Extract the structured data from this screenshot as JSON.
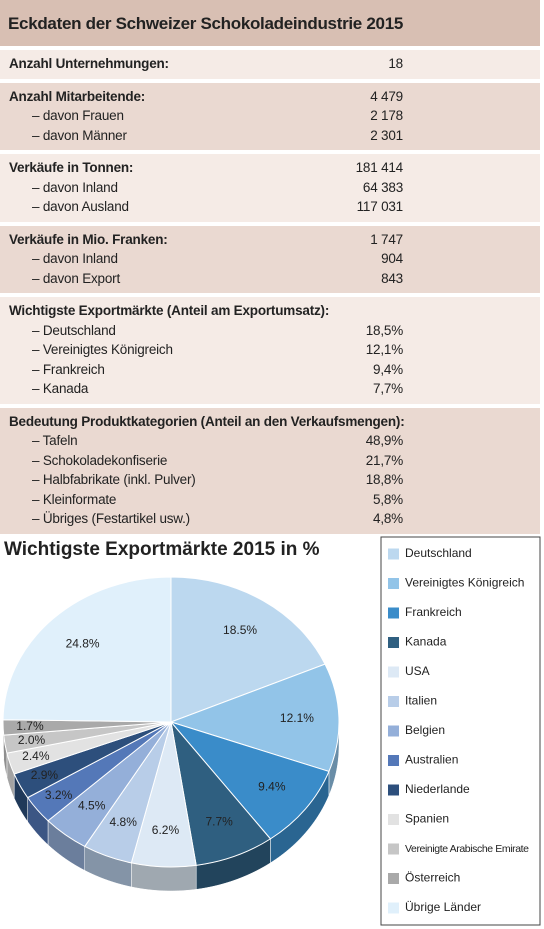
{
  "table": {
    "title": "Eckdaten der Schweizer Schokoladeindustrie 2015",
    "sections": [
      {
        "heading": "Anzahl Unternehmungen:",
        "value": "18",
        "rows": []
      },
      {
        "heading": "Anzahl Mitarbeitende:",
        "value": "4 479",
        "rows": [
          [
            "– davon Frauen",
            "2 178"
          ],
          [
            "– davon Männer",
            "2 301"
          ]
        ]
      },
      {
        "heading": "Verkäufe in Tonnen:",
        "value": "181 414",
        "rows": [
          [
            "– davon Inland",
            "64 383"
          ],
          [
            "– davon Ausland",
            "117 031"
          ]
        ]
      },
      {
        "heading": "Verkäufe in Mio. Franken:",
        "value": "1 747",
        "rows": [
          [
            "– davon Inland",
            "904"
          ],
          [
            "– davon Export",
            "843"
          ]
        ]
      },
      {
        "heading": "Wichtigste Exportmärkte (Anteil am Exportumsatz):",
        "rows": [
          [
            "– Deutschland",
            "18,5%"
          ],
          [
            "– Vereinigtes Königreich",
            "12,1%"
          ],
          [
            "– Frankreich",
            "9,4%"
          ],
          [
            "– Kanada",
            "7,7%"
          ]
        ]
      },
      {
        "heading": "Bedeutung Produktkategorien (Anteil an den Verkaufsmengen):",
        "rows": [
          [
            "– Tafeln",
            "48,9%"
          ],
          [
            "– Schokoladekonfiserie",
            "21,7%"
          ],
          [
            "– Halbfabrikate (inkl. Pulver)",
            "18,8%"
          ],
          [
            "– Kleinformate",
            "5,8%"
          ],
          [
            "– Übriges (Festartikel usw.)",
            "4,8%"
          ]
        ]
      }
    ]
  },
  "chart_data": {
    "type": "pie",
    "title": "Wichtigste Exportmärkte 2015 in %",
    "categories": [
      "Deutschland",
      "Vereinigtes Königreich",
      "Frankreich",
      "Kanada",
      "USA",
      "Italien",
      "Belgien",
      "Australien",
      "Niederlande",
      "Spanien",
      "Vereinigte Arabische Emirate",
      "Österreich",
      "Übrige Länder"
    ],
    "values": [
      18.5,
      12.1,
      9.4,
      7.7,
      6.2,
      4.8,
      4.5,
      3.2,
      2.9,
      2.4,
      2.0,
      1.7,
      24.8
    ],
    "value_labels": [
      "18.5%",
      "12.1%",
      "9.4%",
      "7.7%",
      "6.2%",
      "4.8%",
      "4.5%",
      "3.2%",
      "2.9%",
      "2.4%",
      "2.0%",
      "1.7%",
      "24.8%"
    ],
    "colors": [
      "#bcd8ef",
      "#92c4e8",
      "#3a8cc9",
      "#2f5f80",
      "#dde9f5",
      "#b8cde8",
      "#94afd9",
      "#5478b8",
      "#2d4f7c",
      "#e2e2e2",
      "#c6c6c6",
      "#a9a9a9",
      "#e0f0fb"
    ]
  }
}
